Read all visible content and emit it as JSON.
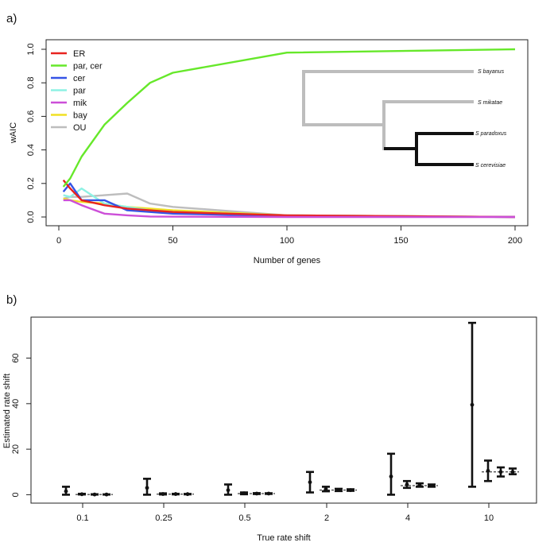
{
  "chart_data": [
    {
      "panel_label": "a)",
      "type": "line",
      "xlabel": "Number of genes",
      "ylabel": "wAIC",
      "xlim": [
        0,
        200
      ],
      "ylim": [
        0,
        1
      ],
      "x_ticks": [
        "0",
        "50",
        "100",
        "150",
        "200"
      ],
      "y_ticks": [
        "0.0",
        "0.2",
        "0.4",
        "0.6",
        "0.8",
        "1.0"
      ],
      "legend_position": "top-left",
      "series": [
        {
          "name": "ER",
          "color": "#e8231f",
          "x": [
            2,
            5,
            10,
            20,
            30,
            40,
            50,
            100,
            200
          ],
          "y": [
            0.22,
            0.17,
            0.1,
            0.07,
            0.05,
            0.04,
            0.03,
            0.01,
            0.0
          ]
        },
        {
          "name": "par, cer",
          "color": "#66e82a",
          "x": [
            2,
            5,
            10,
            20,
            30,
            40,
            50,
            100,
            200
          ],
          "y": [
            0.18,
            0.23,
            0.36,
            0.55,
            0.68,
            0.8,
            0.86,
            0.98,
            1.0
          ]
        },
        {
          "name": "cer",
          "color": "#3553e6",
          "x": [
            2,
            5,
            10,
            20,
            30,
            40,
            50,
            100,
            200
          ],
          "y": [
            0.15,
            0.2,
            0.1,
            0.1,
            0.04,
            0.03,
            0.02,
            0.005,
            0.0
          ]
        },
        {
          "name": "par",
          "color": "#8ef2e4",
          "x": [
            2,
            5,
            10,
            20,
            30,
            40,
            50,
            100,
            200
          ],
          "y": [
            0.13,
            0.12,
            0.17,
            0.08,
            0.06,
            0.04,
            0.03,
            0.01,
            0.0
          ]
        },
        {
          "name": "mik",
          "color": "#cc4fd8",
          "x": [
            2,
            5,
            10,
            20,
            30,
            40,
            50,
            100,
            200
          ],
          "y": [
            0.1,
            0.1,
            0.07,
            0.02,
            0.01,
            0.003,
            0.002,
            0.0,
            0.0
          ]
        },
        {
          "name": "bay",
          "color": "#f0e024",
          "x": [
            2,
            5,
            10,
            20,
            30,
            40,
            50,
            100,
            200
          ],
          "y": [
            0.11,
            0.1,
            0.09,
            0.08,
            0.06,
            0.05,
            0.04,
            0.01,
            0.0
          ]
        },
        {
          "name": "OU",
          "color": "#bdbdbd",
          "x": [
            2,
            5,
            10,
            20,
            30,
            40,
            50,
            100,
            200
          ],
          "y": [
            0.11,
            0.12,
            0.12,
            0.13,
            0.14,
            0.08,
            0.06,
            0.01,
            0.0
          ]
        }
      ],
      "tree": {
        "species": [
          "S bayanus",
          "S mikatae",
          "S paradoxus",
          "S cerevisiae"
        ],
        "branch_color_background": "#bdbdbd",
        "branch_color_shifted": "#111111"
      }
    },
    {
      "panel_label": "b)",
      "type": "errorbar",
      "xlabel": "True rate shift",
      "ylabel": "Estimated rate shift",
      "ylim": [
        -3,
        78
      ],
      "y_ticks": [
        "0",
        "20",
        "40",
        "60"
      ],
      "categories": [
        "0.1",
        "0.25",
        "0.5",
        "2",
        "4",
        "10"
      ],
      "true_values": [
        0.1,
        0.25,
        0.5,
        2,
        4,
        10
      ],
      "groups": [
        {
          "category": "0.1",
          "estimates": [
            {
              "mean": 1.5,
              "low": 0.0,
              "high": 3.5
            },
            {
              "mean": 0.2,
              "low": 0.1,
              "high": 0.4
            },
            {
              "mean": 0.1,
              "low": 0.05,
              "high": 0.2
            },
            {
              "mean": 0.1,
              "low": 0.05,
              "high": 0.15
            }
          ]
        },
        {
          "category": "0.25",
          "estimates": [
            {
              "mean": 3.0,
              "low": 0.0,
              "high": 7.0
            },
            {
              "mean": 0.3,
              "low": 0.1,
              "high": 0.6
            },
            {
              "mean": 0.3,
              "low": 0.15,
              "high": 0.4
            },
            {
              "mean": 0.25,
              "low": 0.15,
              "high": 0.35
            }
          ]
        },
        {
          "category": "0.5",
          "estimates": [
            {
              "mean": 2.0,
              "low": 0.0,
              "high": 4.5
            },
            {
              "mean": 0.6,
              "low": 0.2,
              "high": 1.0
            },
            {
              "mean": 0.5,
              "low": 0.3,
              "high": 0.7
            },
            {
              "mean": 0.5,
              "low": 0.35,
              "high": 0.65
            }
          ]
        },
        {
          "category": "2",
          "estimates": [
            {
              "mean": 5.5,
              "low": 1.0,
              "high": 10.0
            },
            {
              "mean": 2.5,
              "low": 1.5,
              "high": 3.5
            },
            {
              "mean": 2.1,
              "low": 1.6,
              "high": 2.6
            },
            {
              "mean": 2.0,
              "low": 1.7,
              "high": 2.4
            }
          ]
        },
        {
          "category": "4",
          "estimates": [
            {
              "mean": 8.0,
              "low": 0.0,
              "high": 18.0
            },
            {
              "mean": 4.5,
              "low": 3.0,
              "high": 6.0
            },
            {
              "mean": 4.2,
              "low": 3.5,
              "high": 5.0
            },
            {
              "mean": 4.0,
              "low": 3.5,
              "high": 4.5
            }
          ]
        },
        {
          "category": "10",
          "estimates": [
            {
              "mean": 39.5,
              "low": 3.5,
              "high": 75.5
            },
            {
              "mean": 10.5,
              "low": 6.0,
              "high": 15.0
            },
            {
              "mean": 10.0,
              "low": 8.0,
              "high": 12.0
            },
            {
              "mean": 10.0,
              "low": 9.0,
              "high": 11.5
            }
          ]
        }
      ]
    }
  ]
}
